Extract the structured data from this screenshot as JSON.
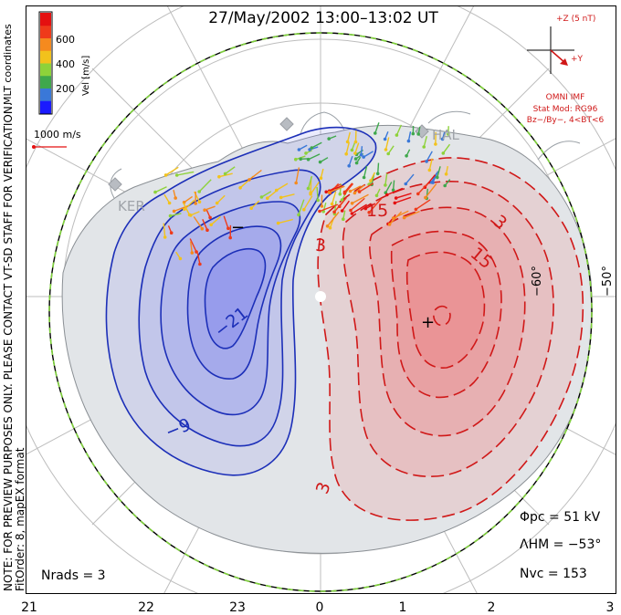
{
  "title": "27/May/2002 13:00–13:02 UT",
  "side_notes": {
    "preview_note": "NOTE: FOR PREVIEW PURPOSES ONLY. PLEASE CONTACT VT-SD STAFF FOR VERIFICATION.",
    "fit_order": "FitOrder: 8, mapEX format",
    "coordinates": "MLT coordinates"
  },
  "velocity_scale": {
    "label": "Vel [m/s]",
    "ticks": [
      "200",
      "400",
      "600"
    ],
    "colors": [
      "#1a1aff",
      "#3a78d8",
      "#3fa84c",
      "#8ed23a",
      "#f2c21c",
      "#f58a1e",
      "#ef3a1a",
      "#e41010"
    ]
  },
  "reference_vector": {
    "label": "1000 m/s",
    "color": "#e41010"
  },
  "imf": {
    "z_label": "+Z (5 nT)",
    "y_label": "+Y",
    "source": "OMNI IMF",
    "model": "Stat Mod: RG96",
    "condition": "Bz−/By−, 4<BT<6"
  },
  "stations": [
    "KER",
    "HAL"
  ],
  "latitude_labels": [
    "−60°",
    "−50°"
  ],
  "contour_labels": {
    "negative": [
      "−21",
      "−9"
    ],
    "positive": [
      "15",
      "15",
      "3",
      "3",
      "3"
    ]
  },
  "extrema": {
    "min_marker": "−",
    "max_marker": "+"
  },
  "stats": {
    "phi_pc": "Φpc  =  51 kV",
    "lambda_hm": "ΛHM  =  −53°",
    "n_vc": "Nvc  =  153",
    "n_rads": "Nrads  =  3"
  },
  "mlt_ticks": [
    "21",
    "22",
    "23",
    "0",
    "1",
    "2",
    "3"
  ],
  "colors": {
    "negative_fill": "#6a6ef0",
    "positive_fill": "#f06a6a",
    "negative_line": "#1c2fb8",
    "positive_line": "#d01818",
    "boundary_dash": "#7fd13b",
    "grid": "#bdbdbd",
    "land": "#e2e5e8"
  },
  "icons": {
    "station": "square-marker-icon",
    "imf": "imf-vector-icon",
    "reference": "reference-arrow-icon"
  }
}
